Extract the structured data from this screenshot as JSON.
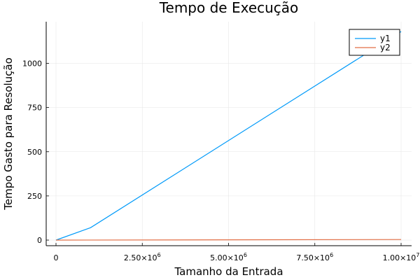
{
  "chart_data": {
    "type": "line",
    "title": "Tempo de Execução",
    "xlabel": "Tamanho da Entrada",
    "ylabel": "Tempo Gasto para Resolução",
    "xlim": [
      0,
      10000000
    ],
    "ylim": [
      0,
      1200
    ],
    "x_ticks": [
      {
        "value": 0,
        "label": "0"
      },
      {
        "value": 2500000,
        "base": "2.50×10",
        "exp": "6"
      },
      {
        "value": 5000000,
        "base": "5.00×10",
        "exp": "6"
      },
      {
        "value": 7500000,
        "base": "7.50×10",
        "exp": "6"
      },
      {
        "value": 10000000,
        "base": "1.00×10",
        "exp": "7"
      }
    ],
    "y_ticks": [
      {
        "value": 0,
        "label": "0"
      },
      {
        "value": 250,
        "label": "250"
      },
      {
        "value": 500,
        "label": "500"
      },
      {
        "value": 750,
        "label": "750"
      },
      {
        "value": 1000,
        "label": "1000"
      }
    ],
    "grid": true,
    "legend_position": "top-right",
    "series": [
      {
        "name": "y1",
        "color": "#009af9",
        "x": [
          0,
          1000000,
          10000000
        ],
        "y": [
          0,
          70,
          1180
        ]
      },
      {
        "name": "y2",
        "color": "#e26f46",
        "x": [
          0,
          10000000
        ],
        "y": [
          0,
          3
        ]
      }
    ]
  }
}
